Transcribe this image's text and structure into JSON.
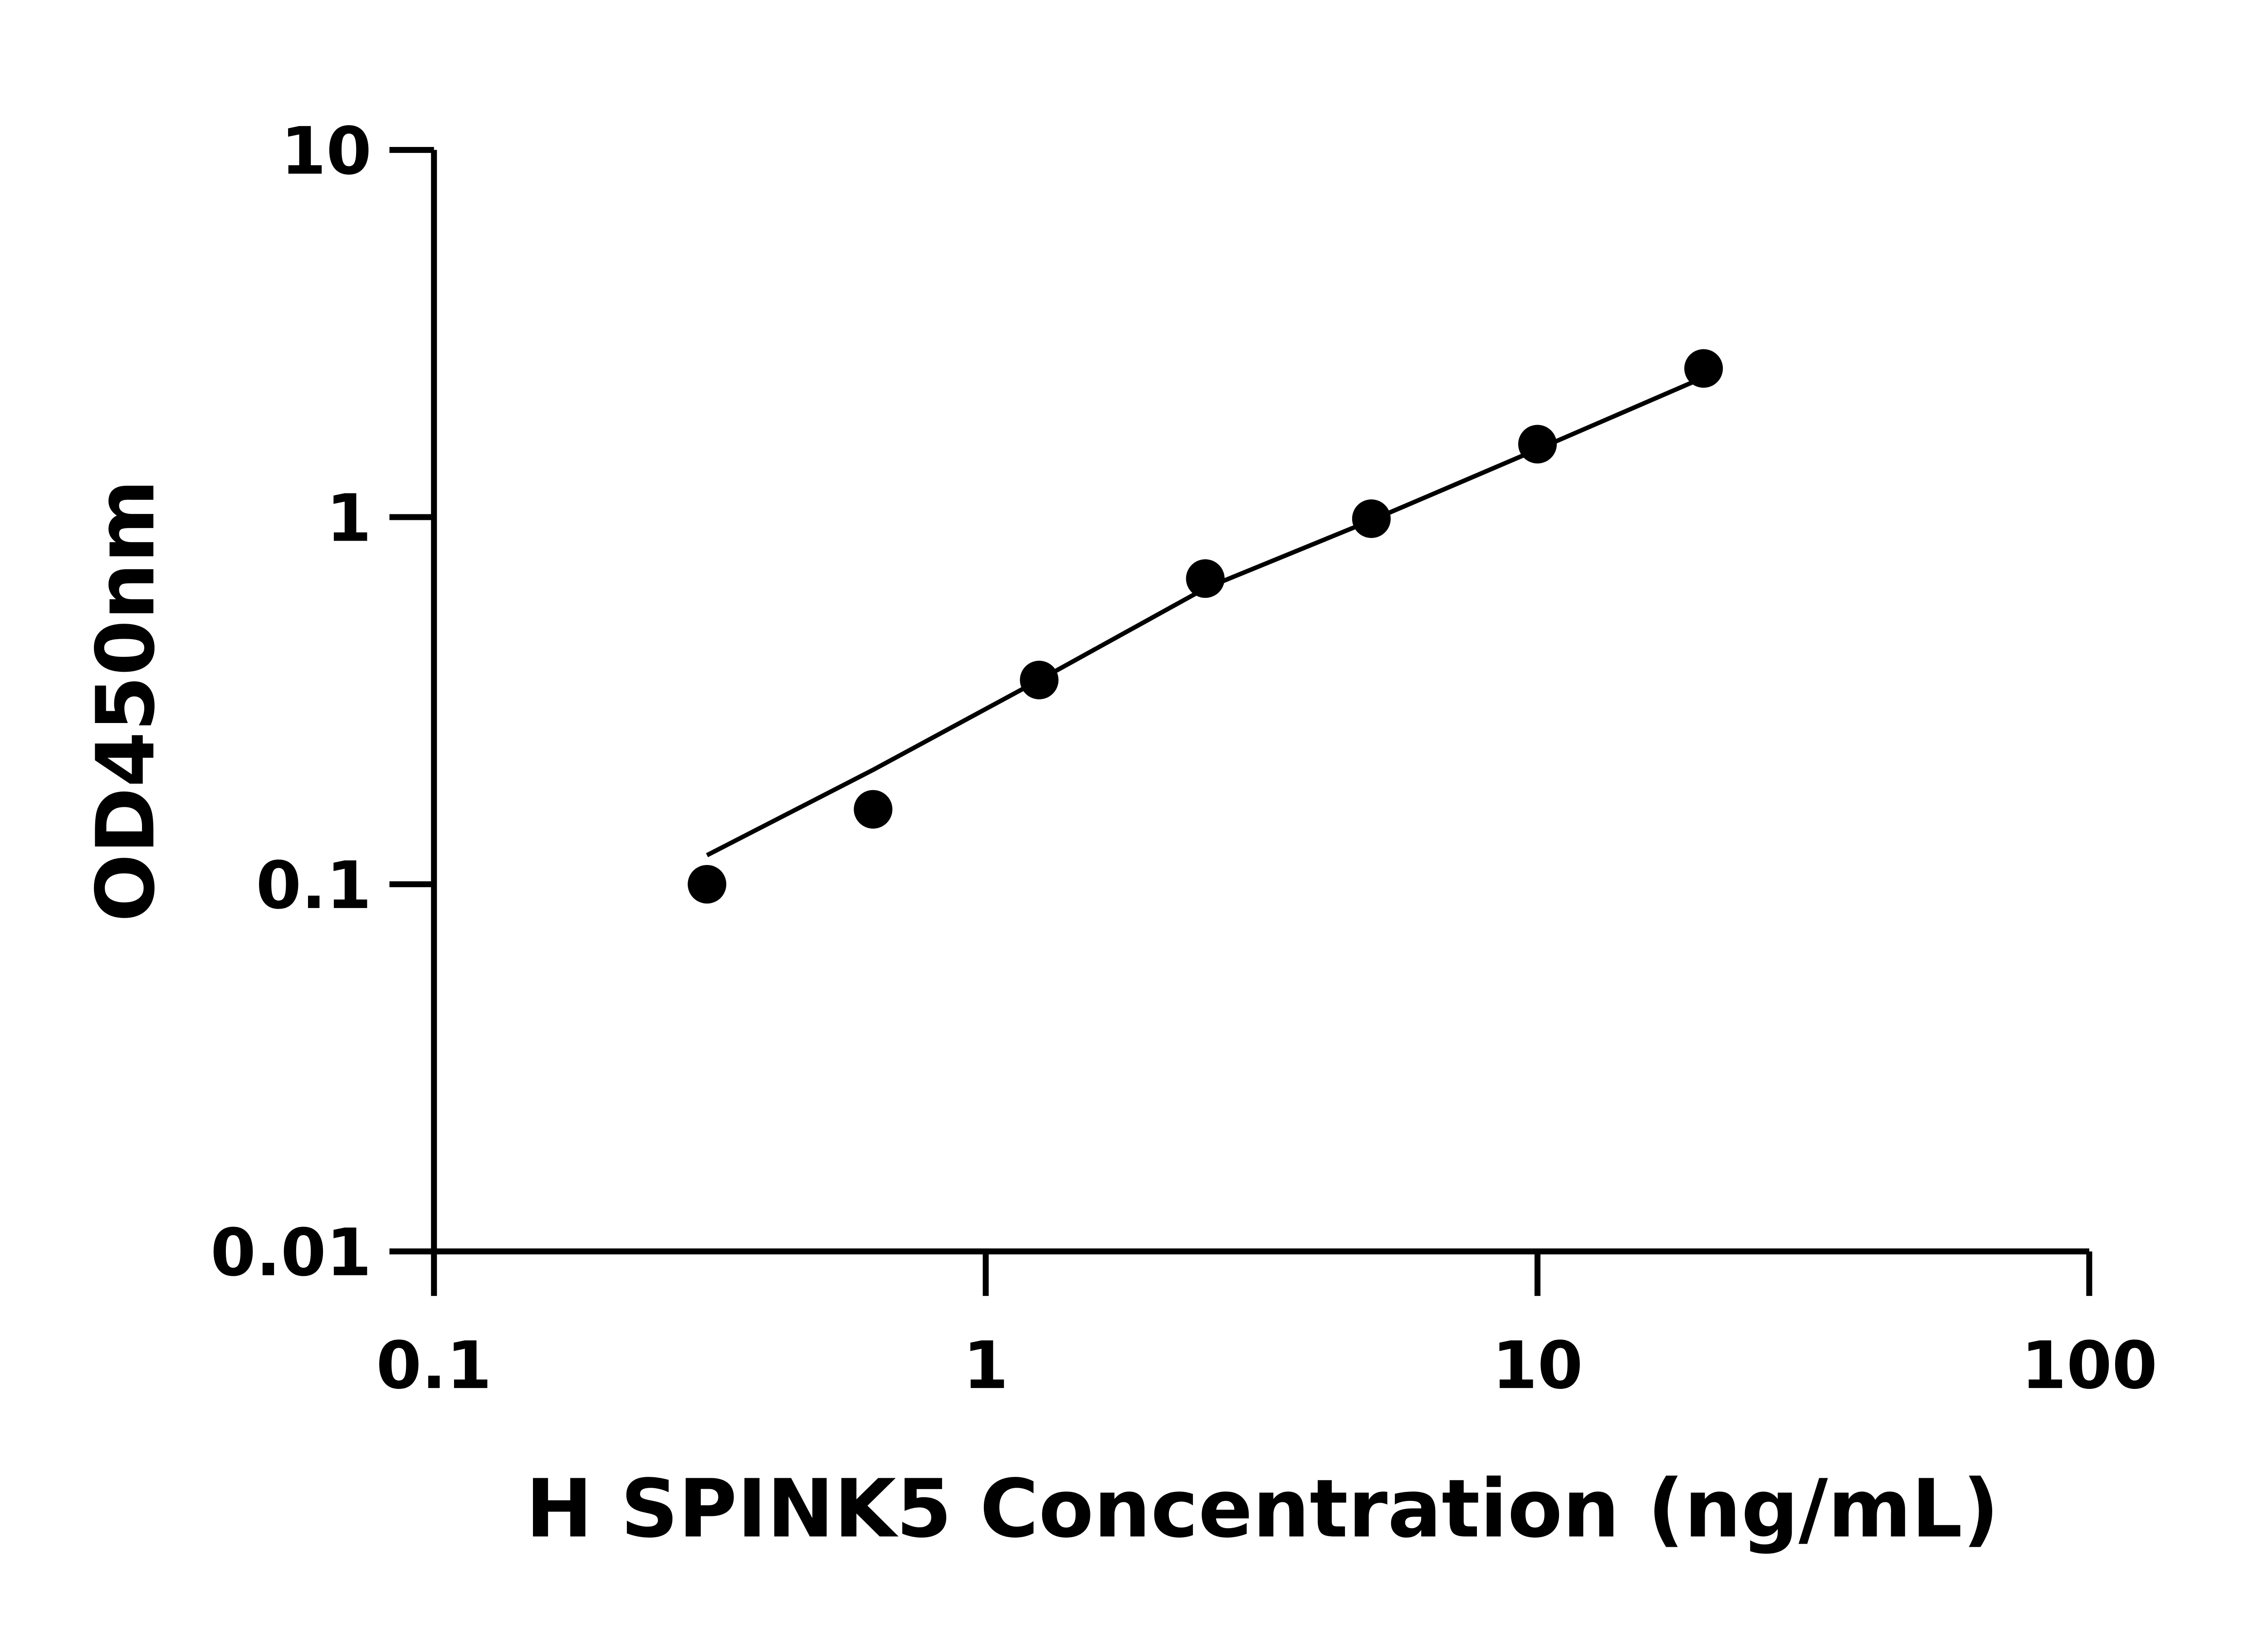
{
  "chart_data": {
    "type": "scatter",
    "title": "",
    "xlabel": "H SPINK5 Concentration (ng/mL)",
    "ylabel": "OD450nm",
    "x_scale": "log",
    "y_scale": "log",
    "xlim": [
      0.1,
      100
    ],
    "ylim": [
      0.01,
      10
    ],
    "x_ticks": [
      "0.1",
      "1",
      "10",
      "100"
    ],
    "y_ticks": [
      "0.01",
      "0.1",
      "1",
      "10"
    ],
    "grid": false,
    "legend": "none",
    "marker_color": "#000000",
    "series": [
      {
        "type": "scatter",
        "x": [
          0.3125,
          0.625,
          1.25,
          2.5,
          5,
          10,
          20
        ],
        "y": [
          0.1,
          0.16,
          0.36,
          0.68,
          0.99,
          1.58,
          2.54
        ]
      },
      {
        "type": "line",
        "x": [
          0.3125,
          0.625,
          1.25,
          2.5,
          5,
          10,
          20
        ],
        "y": [
          0.12,
          0.205,
          0.36,
          0.64,
          0.98,
          1.53,
          2.4
        ]
      }
    ]
  }
}
